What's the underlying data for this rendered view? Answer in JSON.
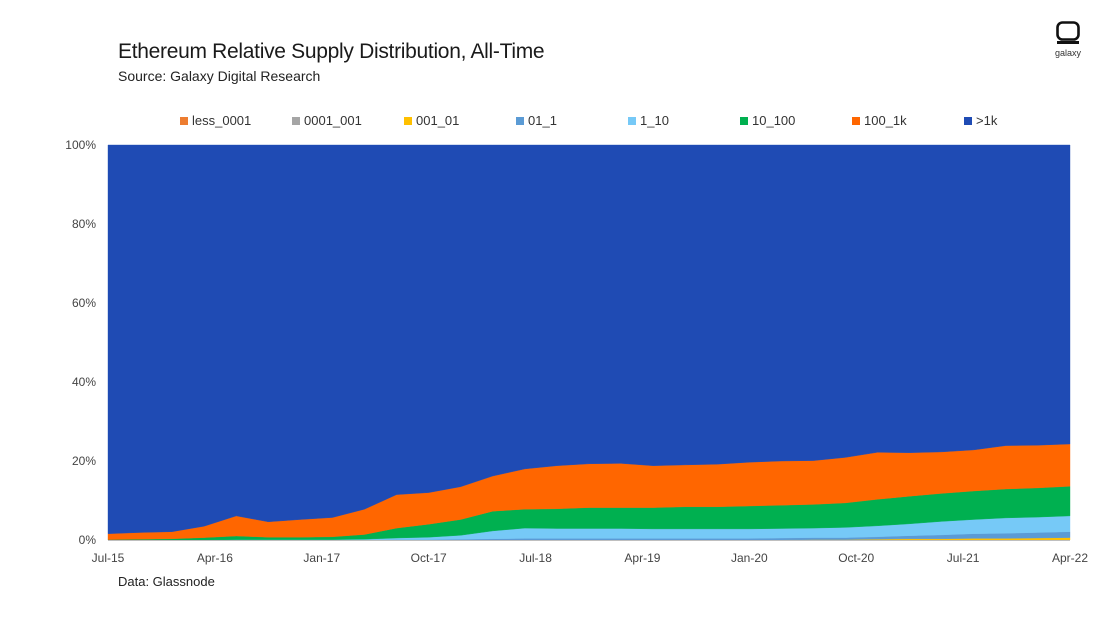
{
  "header": {
    "title": "Ethereum Relative Supply Distribution, All-Time",
    "subtitle": "Source: Galaxy Digital Research"
  },
  "logo": {
    "text": "galaxy"
  },
  "footer": {
    "note": "Data: Glassnode"
  },
  "chart_data": {
    "type": "area",
    "stacked": true,
    "title": "Ethereum Relative Supply Distribution, All-Time",
    "xlabel": "",
    "ylabel": "",
    "ylim": [
      0,
      100
    ],
    "y_ticks": [
      "0%",
      "20%",
      "40%",
      "60%",
      "80%",
      "100%"
    ],
    "x_tick_labels": [
      "Jul-15",
      "Apr-16",
      "Jan-17",
      "Oct-17",
      "Jul-18",
      "Apr-19",
      "Jan-20",
      "Oct-20",
      "Jul-21",
      "Apr-22"
    ],
    "legend_position": "top",
    "x": [
      "Jul-15",
      "Oct-15",
      "Jan-16",
      "Apr-16",
      "Jun-16",
      "Jul-16",
      "Oct-16",
      "Jan-17",
      "Mar-17",
      "May-17",
      "Jul-17",
      "Oct-17",
      "Dec-17",
      "Jan-18",
      "Apr-18",
      "Jul-18",
      "Oct-18",
      "Jan-19",
      "Apr-19",
      "Jul-19",
      "Oct-19",
      "Jan-20",
      "Apr-20",
      "Jul-20",
      "Oct-20",
      "Jan-21",
      "Apr-21",
      "Jul-21",
      "Oct-21",
      "Jan-22",
      "Apr-22"
    ],
    "series": [
      {
        "name": "less_0001",
        "color": "#ED7D31",
        "values": [
          0,
          0,
          0,
          0,
          0,
          0,
          0,
          0,
          0,
          0,
          0,
          0,
          0,
          0,
          0,
          0,
          0,
          0,
          0,
          0,
          0,
          0,
          0,
          0,
          0,
          0,
          0,
          0,
          0,
          0,
          0
        ]
      },
      {
        "name": "0001_001",
        "color": "#A5A5A5",
        "values": [
          0,
          0,
          0,
          0,
          0,
          0,
          0,
          0,
          0,
          0,
          0,
          0,
          0,
          0,
          0,
          0,
          0,
          0,
          0,
          0,
          0,
          0,
          0,
          0,
          0,
          0,
          0,
          0,
          0,
          0,
          0
        ]
      },
      {
        "name": "001_01",
        "color": "#FFC000",
        "values": [
          0,
          0,
          0,
          0,
          0,
          0,
          0,
          0,
          0,
          0,
          0,
          0,
          0,
          0,
          0,
          0,
          0,
          0,
          0,
          0,
          0,
          0,
          0.1,
          0.1,
          0.2,
          0.3,
          0.3,
          0.4,
          0.4,
          0.5,
          0.6
        ]
      },
      {
        "name": "01_1",
        "color": "#5B9BD5",
        "values": [
          0,
          0,
          0,
          0,
          0,
          0,
          0,
          0,
          0,
          0.1,
          0.1,
          0.2,
          0.3,
          0.4,
          0.4,
          0.4,
          0.4,
          0.4,
          0.4,
          0.4,
          0.4,
          0.5,
          0.5,
          0.5,
          0.6,
          0.8,
          1.0,
          1.2,
          1.3,
          1.4,
          1.5
        ]
      },
      {
        "name": "1_10",
        "color": "#76C9F7",
        "values": [
          0,
          0,
          0,
          0,
          0.1,
          0.1,
          0.1,
          0.1,
          0.2,
          0.4,
          0.6,
          1.0,
          2.0,
          2.6,
          2.5,
          2.5,
          2.5,
          2.4,
          2.4,
          2.4,
          2.4,
          2.4,
          2.4,
          2.6,
          2.8,
          3.0,
          3.4,
          3.6,
          3.9,
          3.9,
          4.0
        ]
      },
      {
        "name": "10_100",
        "color": "#00B050",
        "values": [
          0.1,
          0.2,
          0.3,
          0.6,
          0.9,
          0.6,
          0.6,
          0.7,
          1.2,
          2.5,
          3.3,
          4.0,
          5.0,
          4.8,
          5.0,
          5.3,
          5.3,
          5.4,
          5.6,
          5.6,
          5.8,
          5.9,
          6.0,
          6.2,
          6.7,
          7.0,
          7.1,
          7.2,
          7.3,
          7.4,
          7.5
        ]
      },
      {
        "name": "100_1k",
        "color": "#FF6600",
        "values": [
          1.5,
          1.7,
          1.8,
          2.9,
          5.1,
          3.9,
          4.5,
          4.9,
          6.4,
          8.5,
          8.0,
          8.3,
          8.9,
          10.2,
          10.9,
          11.1,
          11.2,
          10.6,
          10.6,
          10.8,
          11.1,
          11.2,
          11.1,
          11.5,
          11.9,
          11.0,
          10.5,
          10.4,
          11.0,
          10.8,
          10.7
        ]
      },
      {
        "name": ">1k",
        "color": "#1F4BB4",
        "values": [
          98.4,
          98.1,
          97.9,
          96.5,
          93.9,
          95.4,
          94.8,
          94.3,
          92.2,
          88.5,
          88.0,
          86.5,
          83.8,
          82.0,
          81.2,
          80.7,
          80.6,
          81.2,
          81.0,
          80.8,
          80.3,
          80.0,
          79.9,
          79.1,
          77.8,
          77.9,
          77.7,
          77.2,
          76.1,
          76.0,
          75.7
        ]
      }
    ]
  }
}
